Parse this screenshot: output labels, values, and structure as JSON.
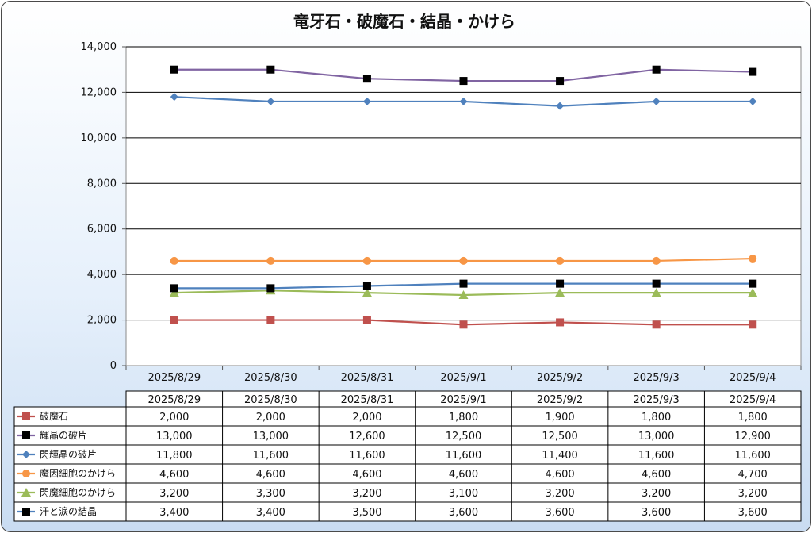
{
  "chart_data": {
    "type": "line",
    "title": "竜牙石・破魔石・結晶・かけら",
    "categories": [
      "2025/8/29",
      "2025/8/30",
      "2025/8/31",
      "2025/9/1",
      "2025/9/2",
      "2025/9/3",
      "2025/9/4"
    ],
    "ylim": [
      0,
      14000
    ],
    "yticks": [
      "0",
      "2,000",
      "4,000",
      "6,000",
      "8,000",
      "10,000",
      "12,000",
      "14,000"
    ],
    "grid": true,
    "legend_placement": "data-table",
    "series": [
      {
        "name": "破魔石",
        "color": "#c0504d",
        "marker": "square",
        "values": [
          2000,
          2000,
          2000,
          1800,
          1900,
          1800,
          1800
        ],
        "labels": [
          "2,000",
          "2,000",
          "2,000",
          "1,800",
          "1,900",
          "1,800",
          "1,800"
        ]
      },
      {
        "name": "輝晶の破片",
        "color": "#8064a2",
        "marker_color": "#000000",
        "marker": "square",
        "values": [
          13000,
          13000,
          12600,
          12500,
          12500,
          13000,
          12900
        ],
        "labels": [
          "13,000",
          "13,000",
          "12,600",
          "12,500",
          "12,500",
          "13,000",
          "12,900"
        ]
      },
      {
        "name": "閃輝晶の破片",
        "color": "#4f81bd",
        "marker": "diamond",
        "values": [
          11800,
          11600,
          11600,
          11600,
          11400,
          11600,
          11600
        ],
        "labels": [
          "11,800",
          "11,600",
          "11,600",
          "11,600",
          "11,400",
          "11,600",
          "11,600"
        ]
      },
      {
        "name": "魔因細胞のかけら",
        "color": "#f79646",
        "marker": "circle",
        "values": [
          4600,
          4600,
          4600,
          4600,
          4600,
          4600,
          4700
        ],
        "labels": [
          "4,600",
          "4,600",
          "4,600",
          "4,600",
          "4,600",
          "4,600",
          "4,700"
        ]
      },
      {
        "name": "閃魔細胞のかけら",
        "color": "#9bbb59",
        "marker": "triangle",
        "values": [
          3200,
          3300,
          3200,
          3100,
          3200,
          3200,
          3200
        ],
        "labels": [
          "3,200",
          "3,300",
          "3,200",
          "3,100",
          "3,200",
          "3,200",
          "3,200"
        ]
      },
      {
        "name": "汗と涙の結晶",
        "color": "#4f81bd",
        "marker_color": "#000000",
        "marker": "square",
        "values": [
          3400,
          3400,
          3500,
          3600,
          3600,
          3600,
          3600
        ],
        "labels": [
          "3,400",
          "3,400",
          "3,500",
          "3,600",
          "3,600",
          "3,600",
          "3,600"
        ]
      }
    ]
  }
}
